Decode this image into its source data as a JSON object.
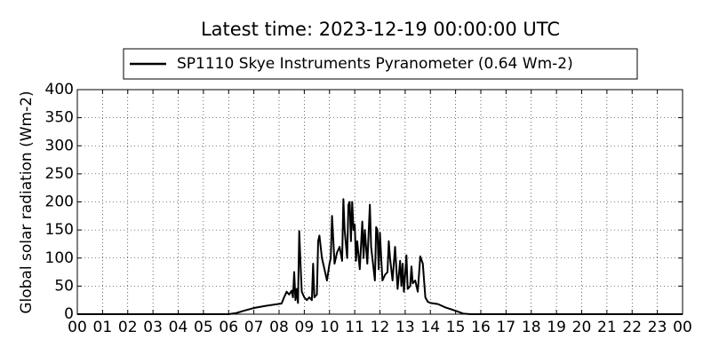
{
  "chart_data": {
    "type": "line",
    "title": "Latest time: 2023-12-19 00:00:00 UTC",
    "y_label": "Global solar radiation (Wm-2)",
    "x": [
      0,
      6.0,
      6.3,
      6.6,
      7.0,
      7.5,
      7.8,
      8.1,
      8.2,
      8.3,
      8.4,
      8.5,
      8.55,
      8.6,
      8.65,
      8.7,
      8.75,
      8.8,
      8.85,
      8.9,
      9.0,
      9.1,
      9.2,
      9.3,
      9.35,
      9.4,
      9.5,
      9.55,
      9.6,
      9.7,
      9.8,
      9.9,
      10.0,
      10.05,
      10.1,
      10.2,
      10.3,
      10.4,
      10.5,
      10.55,
      10.6,
      10.7,
      10.75,
      10.8,
      10.85,
      10.9,
      10.95,
      11.0,
      11.05,
      11.1,
      11.2,
      11.3,
      11.35,
      11.4,
      11.5,
      11.6,
      11.65,
      11.7,
      11.8,
      11.85,
      11.9,
      11.95,
      12.0,
      12.05,
      12.1,
      12.2,
      12.3,
      12.35,
      12.4,
      12.5,
      12.6,
      12.7,
      12.8,
      12.85,
      12.9,
      12.95,
      13.0,
      13.05,
      13.1,
      13.2,
      13.25,
      13.3,
      13.4,
      13.5,
      13.6,
      13.7,
      13.8,
      13.9,
      14.0,
      14.3,
      14.6,
      15.0,
      15.3,
      15.6,
      24
    ],
    "series": [
      {
        "name": "SP1110 Skye Instruments Pyranometer (0.64 Wm-2)",
        "color": "#000000",
        "values": [
          0,
          0,
          2,
          6,
          11,
          15,
          17,
          19,
          30,
          40,
          35,
          42,
          30,
          75,
          25,
          45,
          20,
          148,
          90,
          40,
          30,
          25,
          30,
          25,
          90,
          30,
          35,
          130,
          140,
          100,
          80,
          60,
          90,
          100,
          175,
          90,
          110,
          120,
          95,
          205,
          150,
          100,
          195,
          200,
          130,
          200,
          150,
          160,
          95,
          130,
          80,
          165,
          100,
          150,
          90,
          195,
          120,
          100,
          60,
          155,
          150,
          80,
          145,
          100,
          60,
          70,
          75,
          130,
          100,
          60,
          120,
          45,
          95,
          50,
          90,
          40,
          70,
          105,
          45,
          50,
          85,
          55,
          60,
          40,
          103,
          90,
          30,
          22,
          20,
          18,
          12,
          6,
          1,
          0,
          0
        ]
      }
    ],
    "xlim": [
      0,
      24
    ],
    "xticks": [
      {
        "value": 0,
        "label": "00"
      },
      {
        "value": 1,
        "label": "01"
      },
      {
        "value": 2,
        "label": "02"
      },
      {
        "value": 3,
        "label": "03"
      },
      {
        "value": 4,
        "label": "04"
      },
      {
        "value": 5,
        "label": "05"
      },
      {
        "value": 6,
        "label": "06"
      },
      {
        "value": 7,
        "label": "07"
      },
      {
        "value": 8,
        "label": "08"
      },
      {
        "value": 9,
        "label": "09"
      },
      10,
      11,
      12,
      13,
      14,
      15,
      16,
      17,
      18,
      19,
      20,
      21,
      22,
      23,
      {
        "value": 24,
        "label": "00"
      }
    ],
    "ylim": [
      0,
      400
    ],
    "yticks": [
      0,
      50,
      100,
      150,
      200,
      250,
      300,
      350,
      400
    ],
    "grid": true,
    "legend": "top"
  }
}
